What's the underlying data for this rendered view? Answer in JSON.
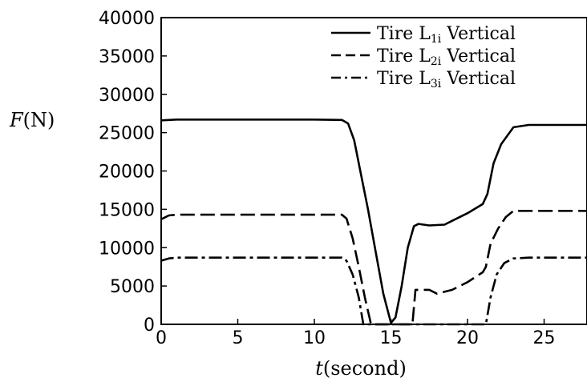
{
  "chart_data": {
    "type": "line",
    "title": "",
    "ylabel": "F(N)",
    "ylabel_parts": {
      "var": "F",
      "unit": "(N)"
    },
    "xlabel": "t(second)",
    "xlabel_parts": {
      "var": "t",
      "unit": "(second)"
    },
    "xlim": [
      0,
      27.8
    ],
    "ylim": [
      0,
      40000
    ],
    "xticks": [
      0,
      5,
      10,
      15,
      20,
      25
    ],
    "xtick_labels": [
      "0",
      "5",
      "10",
      "15",
      "20",
      "25"
    ],
    "yticks": [
      0,
      5000,
      10000,
      15000,
      20000,
      25000,
      30000,
      35000,
      40000
    ],
    "ytick_labels": [
      "0",
      "5000",
      "10000",
      "15000",
      "20000",
      "25000",
      "30000",
      "35000",
      "40000"
    ],
    "grid": false,
    "legend_position": "top-right",
    "series": [
      {
        "name": "Tire L1i Vertical",
        "label_base": "Tire L",
        "label_sub": "1i",
        "label_tail": " Vertical",
        "style": "solid",
        "color": "#000000",
        "points": [
          [
            0,
            26600
          ],
          [
            1,
            26700
          ],
          [
            5,
            26700
          ],
          [
            10,
            26700
          ],
          [
            11.8,
            26650
          ],
          [
            12.2,
            26200
          ],
          [
            12.6,
            24000
          ],
          [
            13,
            20000
          ],
          [
            13.5,
            15000
          ],
          [
            14,
            9500
          ],
          [
            14.5,
            4000
          ],
          [
            15,
            200
          ],
          [
            15.3,
            900
          ],
          [
            15.7,
            5000
          ],
          [
            16.1,
            10000
          ],
          [
            16.5,
            12800
          ],
          [
            16.8,
            13100
          ],
          [
            17.5,
            12900
          ],
          [
            18.5,
            13000
          ],
          [
            19,
            13500
          ],
          [
            20,
            14500
          ],
          [
            21,
            15700
          ],
          [
            21.3,
            17000
          ],
          [
            21.7,
            21000
          ],
          [
            22.2,
            23500
          ],
          [
            23,
            25700
          ],
          [
            24,
            26000
          ],
          [
            27.8,
            26000
          ]
        ]
      },
      {
        "name": "Tire L2i Vertical",
        "label_base": "Tire L",
        "label_sub": "2i",
        "label_tail": " Vertical",
        "style": "dashed",
        "color": "#000000",
        "points": [
          [
            0,
            13700
          ],
          [
            0.5,
            14200
          ],
          [
            1,
            14300
          ],
          [
            5,
            14300
          ],
          [
            10,
            14300
          ],
          [
            11.8,
            14300
          ],
          [
            12.1,
            13800
          ],
          [
            12.5,
            11200
          ],
          [
            12.9,
            7500
          ],
          [
            13.3,
            3500
          ],
          [
            13.7,
            0
          ],
          [
            16.4,
            0
          ],
          [
            16.6,
            4500
          ],
          [
            17.5,
            4500
          ],
          [
            18,
            4000
          ],
          [
            19,
            4500
          ],
          [
            20,
            5500
          ],
          [
            21,
            6800
          ],
          [
            21.2,
            7500
          ],
          [
            21.5,
            10500
          ],
          [
            22,
            12500
          ],
          [
            22.5,
            14000
          ],
          [
            23,
            14800
          ],
          [
            24,
            14800
          ],
          [
            27.8,
            14800
          ]
        ]
      },
      {
        "name": "Tire L3i Vertical",
        "label_base": "Tire L",
        "label_sub": "3i",
        "label_tail": " Vertical",
        "style": "dashdot",
        "color": "#000000",
        "points": [
          [
            0,
            8300
          ],
          [
            0.5,
            8600
          ],
          [
            1,
            8700
          ],
          [
            5,
            8700
          ],
          [
            10,
            8700
          ],
          [
            11.8,
            8700
          ],
          [
            12.1,
            8300
          ],
          [
            12.5,
            6500
          ],
          [
            12.9,
            3500
          ],
          [
            13.2,
            0
          ],
          [
            21.2,
            0
          ],
          [
            21.5,
            3500
          ],
          [
            21.9,
            6500
          ],
          [
            22.4,
            8000
          ],
          [
            23,
            8600
          ],
          [
            24,
            8700
          ],
          [
            27.8,
            8700
          ]
        ]
      }
    ]
  }
}
